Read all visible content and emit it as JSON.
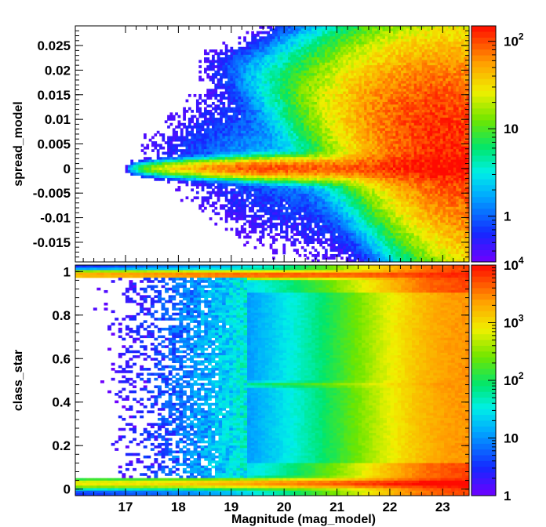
{
  "chart_data": [
    {
      "type": "heatmap",
      "panel": "top",
      "xlabel": "",
      "ylabel": "spread_model",
      "xlim": [
        16.05,
        23.5
      ],
      "ylim": [
        -0.019,
        0.029
      ],
      "xticks": [
        17,
        18,
        19,
        20,
        21,
        22,
        23
      ],
      "yticks": [
        {
          "value": 0.025,
          "label": "0.025"
        },
        {
          "value": 0.02,
          "label": "0.02"
        },
        {
          "value": 0.015,
          "label": "0.015"
        },
        {
          "value": 0.01,
          "label": "0.01"
        },
        {
          "value": 0.005,
          "label": "0.005"
        },
        {
          "value": 0,
          "label": "0"
        },
        {
          "value": -0.005,
          "label": "-0.005"
        },
        {
          "value": -0.01,
          "label": "-0.01"
        },
        {
          "value": -0.015,
          "label": "-0.015"
        }
      ],
      "z_scale": "log",
      "zlim": [
        0.3,
        150
      ],
      "colorbar_ticks": [
        {
          "value": 1,
          "label": "1"
        },
        {
          "value": 10,
          "label": "10"
        },
        {
          "value": 100,
          "label": "10^2"
        }
      ],
      "features": {
        "stellar_locus": {
          "y": 0.0,
          "x_start": 17.0,
          "peak_x": 19.5,
          "peak_counts": 100
        },
        "galaxy_cloud": {
          "center_x": 23.0,
          "center_y": 0.006,
          "peak_counts": 120
        }
      }
    },
    {
      "type": "heatmap",
      "panel": "bottom",
      "xlabel": "Magnitude (mag_model)",
      "ylabel": "class_star",
      "xlim": [
        16.05,
        23.5
      ],
      "ylim": [
        -0.03,
        1.03
      ],
      "xticks": [
        17,
        18,
        19,
        20,
        21,
        22,
        23
      ],
      "yticks": [
        {
          "value": 1,
          "label": "1"
        },
        {
          "value": 0.8,
          "label": "0.8"
        },
        {
          "value": 0.6,
          "label": "0.6"
        },
        {
          "value": 0.4,
          "label": "0.4"
        },
        {
          "value": 0.2,
          "label": "0.2"
        },
        {
          "value": 0,
          "label": "0"
        }
      ],
      "z_scale": "log",
      "zlim": [
        1,
        10000
      ],
      "colorbar_ticks": [
        {
          "value": 1,
          "label": "1"
        },
        {
          "value": 10,
          "label": "10"
        },
        {
          "value": 100,
          "label": "10^2"
        },
        {
          "value": 1000,
          "label": "10^3"
        },
        {
          "value": 10000,
          "label": "10^4"
        }
      ],
      "features": {
        "star_band": {
          "class_star": 0.98,
          "peak_counts": 5000
        },
        "galaxy_band": {
          "class_star": 0.02,
          "peak_counts": 8000
        },
        "mid_band": {
          "class_star": 0.48
        }
      }
    }
  ]
}
